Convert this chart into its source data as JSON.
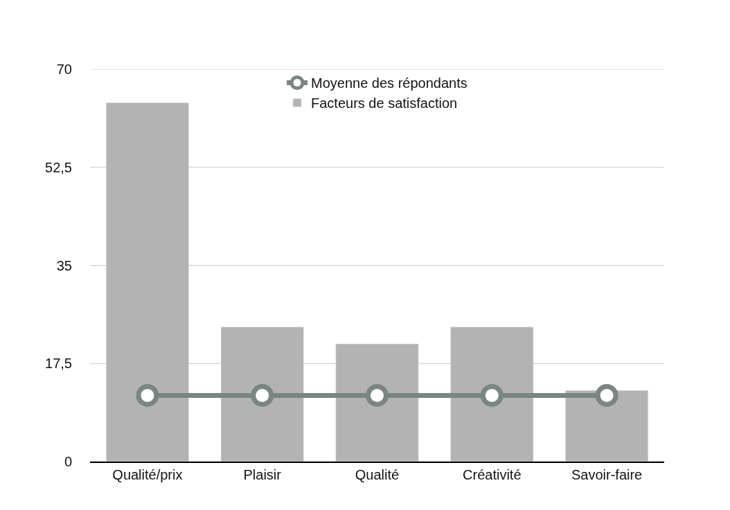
{
  "chart_data": {
    "type": "bar",
    "categories": [
      "Qualité/prix",
      "Plaisir",
      "Qualité",
      "Créativité",
      "Savoir-faire"
    ],
    "series": [
      {
        "name": "Moyenne des répondants",
        "type": "line",
        "color": "#7b8582",
        "values": [
          11.8,
          11.8,
          11.8,
          11.8,
          11.8
        ],
        "marker": "circle"
      },
      {
        "name": "Facteurs de satisfaction",
        "color": "#b3b3b3",
        "values": [
          64,
          24,
          21,
          24,
          12.7
        ]
      }
    ],
    "ylim": [
      0,
      70
    ],
    "yticks": [
      0,
      {
        "value": 17.5,
        "label": "17,5"
      },
      35,
      {
        "value": 52.5,
        "label": "52,5"
      },
      70
    ],
    "grid": "y",
    "legend": "top"
  }
}
